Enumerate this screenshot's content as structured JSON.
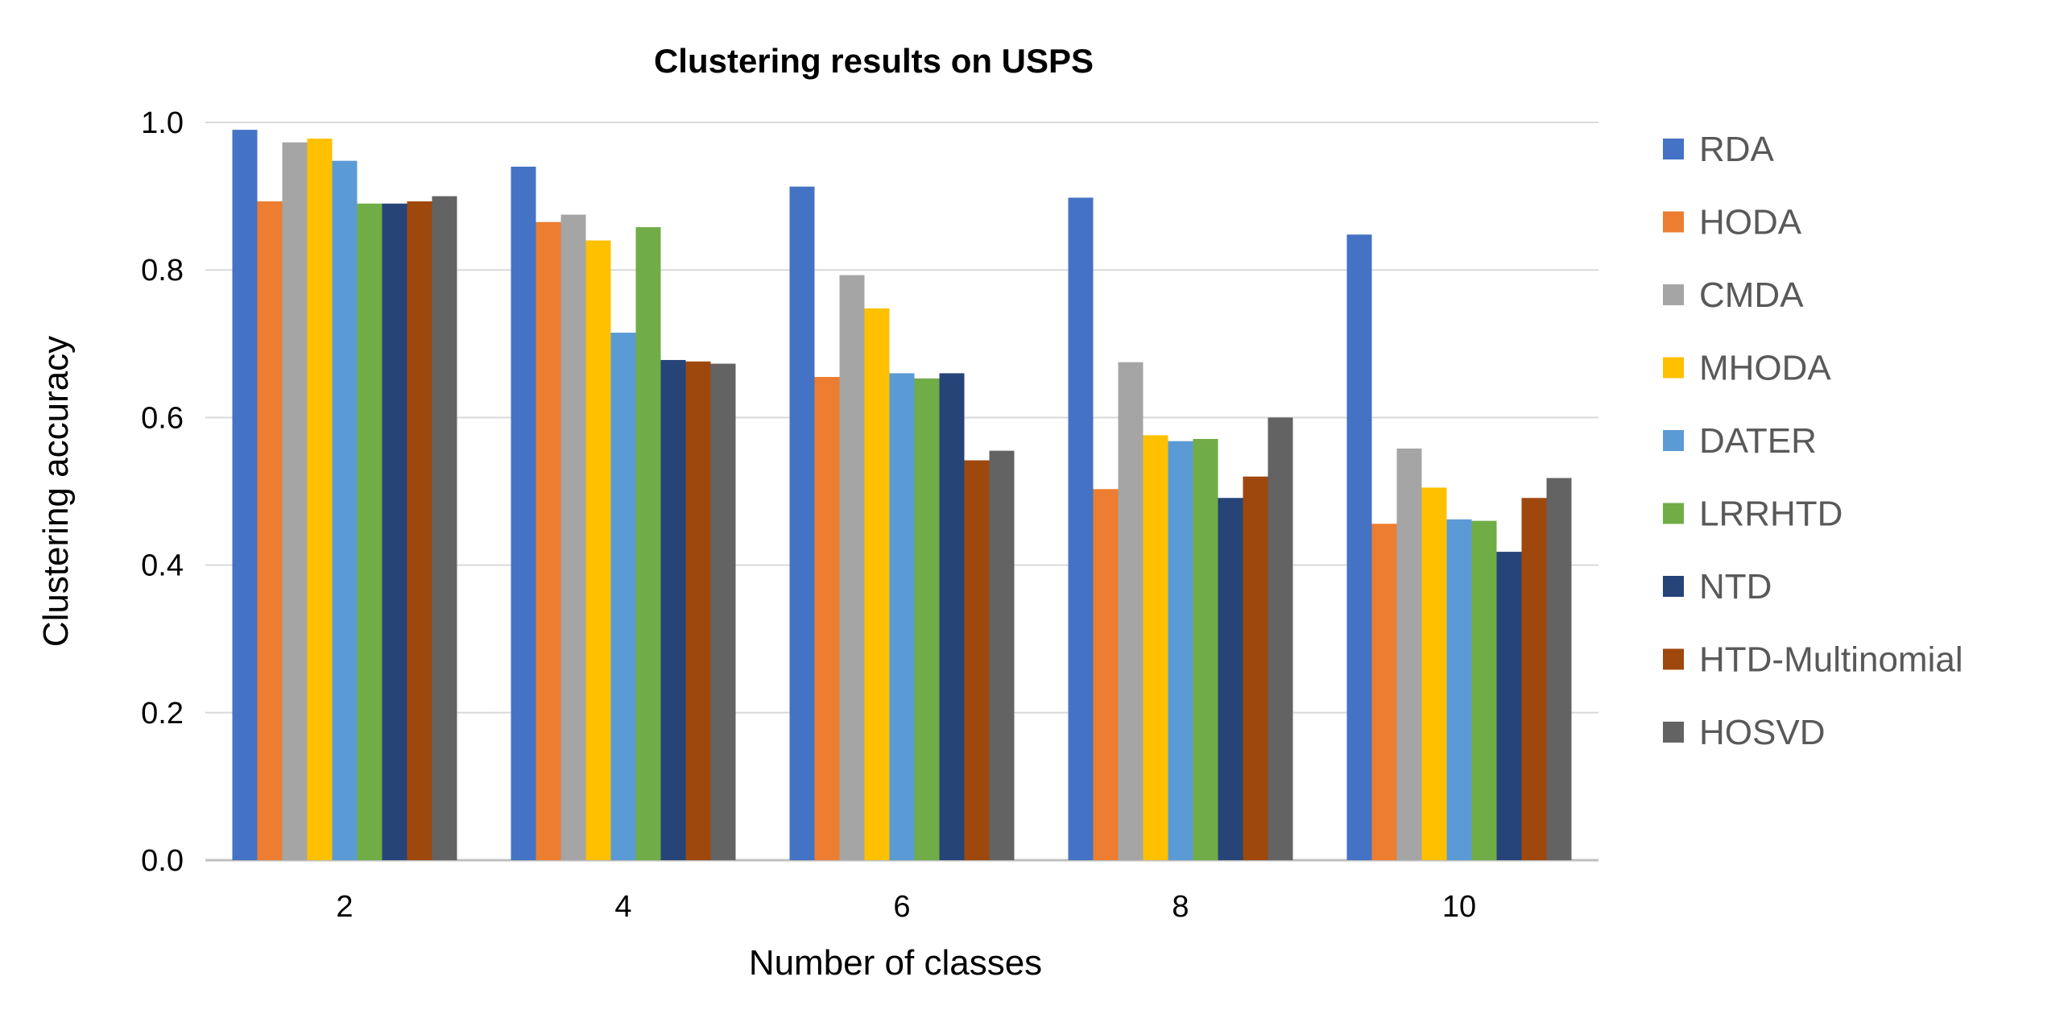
{
  "chart_data": {
    "type": "bar",
    "title": "Clustering results on USPS",
    "xlabel": "Number of classes",
    "ylabel": "Clustering accuracy",
    "categories": [
      "2",
      "4",
      "6",
      "8",
      "10"
    ],
    "ylim": [
      0,
      1.0
    ],
    "yticks": [
      "0.0",
      "0.2",
      "0.4",
      "0.6",
      "0.8",
      "1.0"
    ],
    "grid": true,
    "legend_position": "right",
    "series": [
      {
        "name": "RDA",
        "color": "#4472C4",
        "values": [
          0.99,
          0.94,
          0.913,
          0.898,
          0.848
        ]
      },
      {
        "name": "HODA",
        "color": "#ED7D31",
        "values": [
          0.893,
          0.865,
          0.655,
          0.503,
          0.456
        ]
      },
      {
        "name": "CMDA",
        "color": "#A5A5A5",
        "values": [
          0.973,
          0.875,
          0.793,
          0.675,
          0.558
        ]
      },
      {
        "name": "MHODA",
        "color": "#FFC000",
        "values": [
          0.978,
          0.84,
          0.748,
          0.576,
          0.505
        ]
      },
      {
        "name": "DATER",
        "color": "#5B9BD5",
        "values": [
          0.948,
          0.715,
          0.66,
          0.568,
          0.462
        ]
      },
      {
        "name": "LRRHTD",
        "color": "#70AD47",
        "values": [
          0.89,
          0.858,
          0.653,
          0.571,
          0.46
        ]
      },
      {
        "name": "NTD",
        "color": "#264478",
        "values": [
          0.89,
          0.678,
          0.66,
          0.491,
          0.418
        ]
      },
      {
        "name": "HTD-Multinomial",
        "color": "#9E480E",
        "values": [
          0.893,
          0.676,
          0.542,
          0.52,
          0.491
        ]
      },
      {
        "name": "HOSVD",
        "color": "#636363",
        "values": [
          0.9,
          0.673,
          0.555,
          0.6,
          0.518
        ]
      }
    ]
  }
}
